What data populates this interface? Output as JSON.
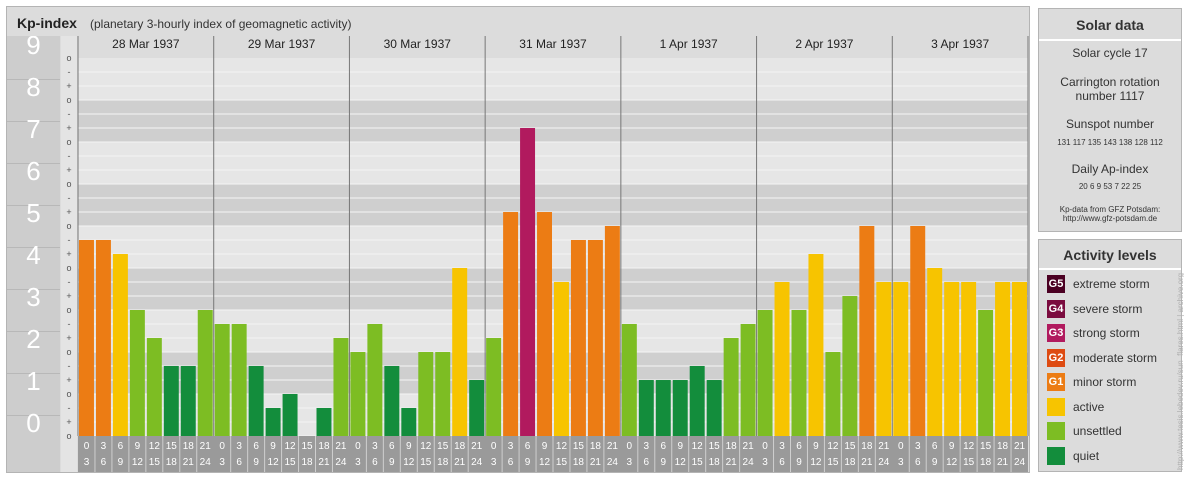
{
  "header": {
    "title": "Kp-index",
    "subtitle": "(planetary 3-hourly index of geomagnetic activity)"
  },
  "chart_data": {
    "type": "bar",
    "ylim": [
      0,
      9
    ],
    "y_ticks": [
      "0",
      "1",
      "2",
      "3",
      "4",
      "5",
      "6",
      "7",
      "8",
      "9"
    ],
    "y_minor_marks": [
      "o",
      "+",
      "-"
    ],
    "days": [
      "28 Mar 1937",
      "29 Mar 1937",
      "30 Mar 1937",
      "31 Mar 1937",
      "1 Apr 1937",
      "2 Apr 1937",
      "3 Apr 1937"
    ],
    "interval_labels": [
      [
        "0",
        "3"
      ],
      [
        "3",
        "6"
      ],
      [
        "6",
        "9"
      ],
      [
        "9",
        "12"
      ],
      [
        "12",
        "15"
      ],
      [
        "15",
        "18"
      ],
      [
        "18",
        "21"
      ],
      [
        "21",
        "24"
      ]
    ],
    "values": [
      4.667,
      4.667,
      4.333,
      3.0,
      2.333,
      1.667,
      1.667,
      3.0,
      2.667,
      2.667,
      1.667,
      0.667,
      1.0,
      0.0,
      0.667,
      2.333,
      2.0,
      2.667,
      1.667,
      0.667,
      2.0,
      2.0,
      4.0,
      1.333,
      2.333,
      5.333,
      7.333,
      5.333,
      3.667,
      4.667,
      4.667,
      5.0,
      2.667,
      1.333,
      1.333,
      1.333,
      1.667,
      1.333,
      2.333,
      2.667,
      3.0,
      3.667,
      3.0,
      4.333,
      2.0,
      3.333,
      5.0,
      3.667,
      3.667,
      5.0,
      4.0,
      3.667,
      3.667,
      3.0,
      3.667,
      3.667
    ],
    "colors": {
      "quiet": "#138d3c",
      "unsettled": "#7dbd23",
      "active": "#f7c400",
      "minor": "#ec7c14",
      "moderate": "#de4b12",
      "strong": "#b11a5e",
      "severe": "#7b0c3f",
      "extreme": "#4b0022"
    }
  },
  "solar": {
    "title": "Solar data",
    "cycle": "Solar cycle 17",
    "carrington_line1": "Carrington rotation",
    "carrington_line2": "number 1117",
    "sunspot_label": "Sunspot number",
    "sunspot_values": "131  117  135  143  138  128  112",
    "ap_label": "Daily Ap-index",
    "ap_values": "20     6     9     53     7     22     25",
    "source_line1": "Kp-data from GFZ Potsdam:",
    "source_line2": "http://www.gfz-potsdam.de"
  },
  "activity": {
    "title": "Activity levels",
    "levels": [
      {
        "code": "G5",
        "label": "extreme storm",
        "color": "#4b0022"
      },
      {
        "code": "G4",
        "label": "severe storm",
        "color": "#7b0c3f"
      },
      {
        "code": "G3",
        "label": "strong storm",
        "color": "#b11a5e"
      },
      {
        "code": "G2",
        "label": "moderate storm",
        "color": "#de4b12"
      },
      {
        "code": "G1",
        "label": "minor storm",
        "color": "#ec7c14"
      },
      {
        "code": "",
        "label": "active",
        "color": "#f7c400"
      },
      {
        "code": "",
        "label": "unsettled",
        "color": "#7dbd23"
      },
      {
        "code": "",
        "label": "quiet",
        "color": "#138d3c"
      }
    ]
  },
  "credit": "http://www.tesis.lebedev.ru/sun_flares.html | archive.org"
}
